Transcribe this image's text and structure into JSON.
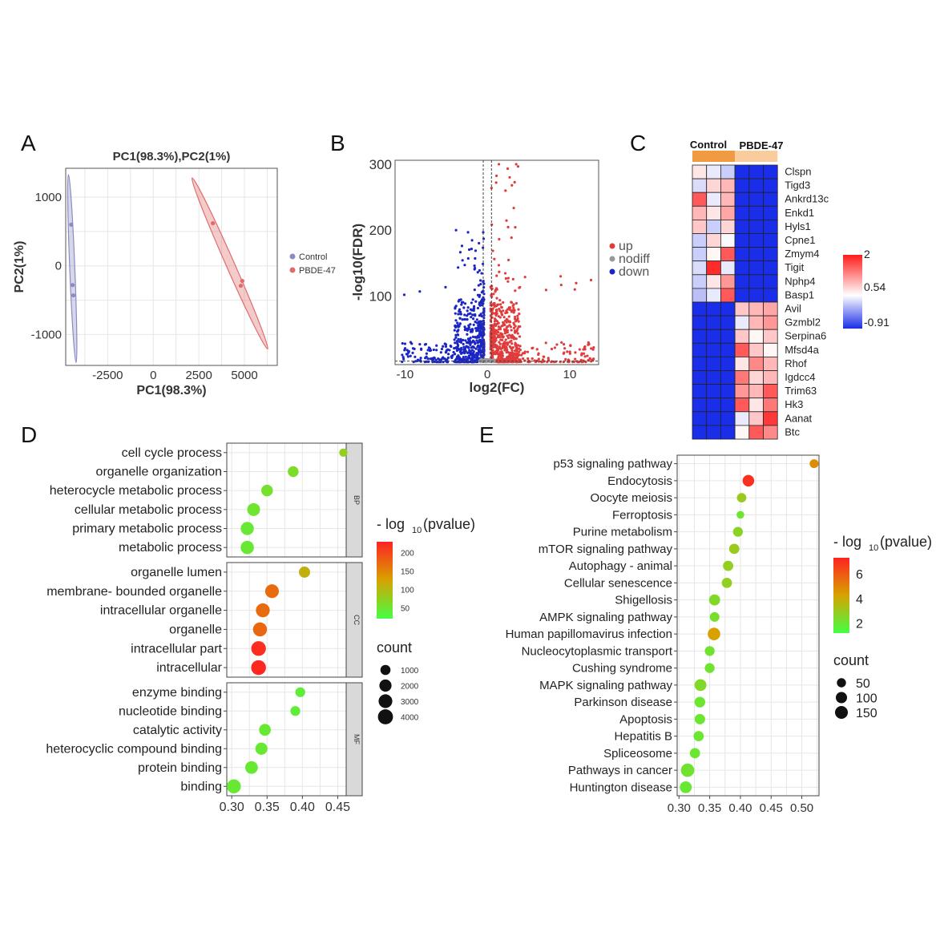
{
  "colors": {
    "control": "#8b8bc2",
    "pbde": "#e06b6b",
    "up": "#e03c3c",
    "down": "#1a25c4",
    "nodiff": "#999999",
    "low": "#44ff44",
    "mid": "#d7a300",
    "high": "#ff2222"
  },
  "chart_data": [
    {
      "panel": "A",
      "type": "scatter",
      "title": "PC1(98.3%),PC2(1%)",
      "xlabel": "PC1(98.3%)",
      "ylabel": "PC2(1%)",
      "xlim": [
        -4800,
        6800
      ],
      "ylim": [
        -1450,
        1420
      ],
      "xticks": [
        "-2500",
        "0",
        "2500",
        "5000"
      ],
      "xtick_values": [
        -2500,
        0,
        2500,
        5000
      ],
      "yticks": [
        "1000",
        "0",
        "-1000"
      ],
      "ytick_values": [
        1000,
        0,
        -1000
      ],
      "legend": [
        "Control",
        "PBDE-47"
      ],
      "series": [
        {
          "name": "Control",
          "points": [
            [
              -4500,
              600
            ],
            [
              -4420,
              -280
            ],
            [
              -4380,
              -430
            ]
          ],
          "ellipse": {
            "center": [
              -4440,
              -40
            ],
            "tip_a": [
              -4650,
              1330
            ],
            "tip_b": [
              -4230,
              -1410
            ],
            "half_width": 140
          }
        },
        {
          "name": "PBDE-47",
          "points": [
            [
              3270,
              620
            ],
            [
              4880,
              -220
            ],
            [
              4800,
              -290
            ]
          ],
          "ellipse": {
            "center": [
              4220,
              160
            ],
            "tip_a": [
              2130,
              1280
            ],
            "tip_b": [
              6270,
              -1210
            ],
            "half_width": 230
          }
        }
      ]
    },
    {
      "panel": "B",
      "type": "scatter",
      "title": "",
      "xlabel": "log2(FC)",
      "ylabel": "-log10(FDR)",
      "xlim": [
        -11.2,
        13.5
      ],
      "ylim": [
        -4,
        306
      ],
      "xticks": [
        "-10",
        "0",
        "10"
      ],
      "xtick_values": [
        -10,
        0,
        10
      ],
      "yticks": [
        "300",
        "200",
        "100"
      ],
      "ytick_values": [
        300,
        200,
        100
      ],
      "legend": [
        "up",
        "nodiff",
        "down"
      ],
      "series": [
        {
          "name": "up",
          "n": 650,
          "x_range": [
            0.1,
            13
          ],
          "max_fdr": 300
        },
        {
          "name": "down",
          "n": 580,
          "x_range": [
            -10.5,
            -0.1
          ],
          "max_fdr": 200
        },
        {
          "name": "nodiff",
          "n": 120,
          "x_range": [
            -1,
            1
          ],
          "max_fdr": 6
        }
      ],
      "thresholds": {
        "x": [
          -0.5,
          0.5
        ],
        "y": 1.3
      }
    },
    {
      "panel": "C",
      "type": "heatmap",
      "groups": [
        "Control",
        "PBDE-47"
      ],
      "genes": [
        "Clspn",
        "Tigd3",
        "Ankrd13c",
        "Enkd1",
        "Hyls1",
        "Cpne1",
        "Zmym4",
        "Tigit",
        "Nphp4",
        "Basp1",
        "Avil",
        "Gzmbl2",
        "Serpina6",
        "Mfsd4a",
        "Rhof",
        "Igdcc4",
        "Trim63",
        "Hk3",
        "Aanat",
        "Btc"
      ],
      "scale_labels": [
        "2",
        "0.54",
        "-0.91"
      ],
      "scale_range": [
        -0.91,
        2
      ],
      "values": [
        [
          0.7,
          0.4,
          0.2,
          -0.91,
          -0.91,
          -0.91
        ],
        [
          0.3,
          0.8,
          1.0,
          -0.91,
          -0.91,
          -0.91
        ],
        [
          1.6,
          0.4,
          1.0,
          -0.91,
          -0.91,
          -0.91
        ],
        [
          1.0,
          0.7,
          1.1,
          -0.91,
          -0.91,
          -0.91
        ],
        [
          0.9,
          0.2,
          0.8,
          -0.91,
          -0.91,
          -0.91
        ],
        [
          0.2,
          0.8,
          0.5,
          -0.91,
          -0.91,
          -0.91
        ],
        [
          0.2,
          0.6,
          1.6,
          -0.91,
          -0.91,
          -0.91
        ],
        [
          0.3,
          1.9,
          0.4,
          -0.91,
          -0.91,
          -0.91
        ],
        [
          0.2,
          0.7,
          1.2,
          -0.91,
          -0.91,
          -0.91
        ],
        [
          0.1,
          0.4,
          1.6,
          -0.91,
          -0.91,
          -0.91
        ],
        [
          -0.91,
          -0.91,
          -0.91,
          0.9,
          1.0,
          1.1
        ],
        [
          -0.91,
          -0.91,
          -0.91,
          0.4,
          1.0,
          1.2
        ],
        [
          -0.91,
          -0.91,
          -0.91,
          0.9,
          0.6,
          0.9
        ],
        [
          -0.91,
          -0.91,
          -0.91,
          1.6,
          0.9,
          0.6
        ],
        [
          -0.91,
          -0.91,
          -0.91,
          0.7,
          1.3,
          1.0
        ],
        [
          -0.91,
          -0.91,
          -0.91,
          1.4,
          0.8,
          1.0
        ],
        [
          -0.91,
          -0.91,
          -0.91,
          1.2,
          1.0,
          1.6
        ],
        [
          -0.91,
          -0.91,
          -0.91,
          1.6,
          0.7,
          1.4
        ],
        [
          -0.91,
          -0.91,
          -0.91,
          0.4,
          0.9,
          1.8
        ],
        [
          -0.91,
          -0.91,
          -0.91,
          0.6,
          1.6,
          1.3
        ]
      ]
    },
    {
      "panel": "D",
      "type": "scatter",
      "xlabel": "",
      "xlim": [
        0.293,
        0.462
      ],
      "xticks": [
        "0.30",
        "0.35",
        "0.40",
        "0.45"
      ],
      "xtick_values": [
        0.3,
        0.35,
        0.4,
        0.45
      ],
      "colorbar_title": "- log10(pvalue)",
      "colorbar_labels": [
        "200",
        "150",
        "100",
        "50"
      ],
      "color_range": [
        20,
        230
      ],
      "size_title": "count",
      "size_labels": [
        "1000",
        "2000",
        "3000",
        "4000"
      ],
      "size_values": [
        1000,
        2000,
        3000,
        4000
      ],
      "facets": [
        {
          "name": "BP",
          "rows": [
            {
              "term": "cell cycle process",
              "x": 0.458,
              "count": 400,
              "p": 75
            },
            {
              "term": "organelle organization",
              "x": 0.387,
              "count": 1300,
              "p": 60
            },
            {
              "term": "heterocycle metabolic process",
              "x": 0.35,
              "count": 1700,
              "p": 55
            },
            {
              "term": "cellular metabolic process",
              "x": 0.331,
              "count": 2400,
              "p": 50
            },
            {
              "term": "primary metabolic process",
              "x": 0.322,
              "count": 2600,
              "p": 45
            },
            {
              "term": "metabolic process",
              "x": 0.322,
              "count": 2700,
              "p": 45
            }
          ]
        },
        {
          "name": "CC",
          "rows": [
            {
              "term": "organelle lumen",
              "x": 0.403,
              "count": 1500,
              "p": 110
            },
            {
              "term": "membrane- bounded organelle",
              "x": 0.357,
              "count": 3000,
              "p": 170
            },
            {
              "term": "intracellular organelle",
              "x": 0.344,
              "count": 3100,
              "p": 170
            },
            {
              "term": "organelle",
              "x": 0.34,
              "count": 3200,
              "p": 175
            },
            {
              "term": "intracellular part",
              "x": 0.338,
              "count": 3700,
              "p": 220
            },
            {
              "term": "intracellular",
              "x": 0.338,
              "count": 3800,
              "p": 225
            }
          ]
        },
        {
          "name": "MF",
          "rows": [
            {
              "term": "enzyme binding",
              "x": 0.397,
              "count": 900,
              "p": 40
            },
            {
              "term": "nucleotide binding",
              "x": 0.39,
              "count": 900,
              "p": 40
            },
            {
              "term": "catalytic activity",
              "x": 0.347,
              "count": 1800,
              "p": 45
            },
            {
              "term": "heterocyclic compound binding",
              "x": 0.342,
              "count": 2000,
              "p": 45
            },
            {
              "term": "protein binding",
              "x": 0.328,
              "count": 2300,
              "p": 45
            },
            {
              "term": "binding",
              "x": 0.303,
              "count": 3200,
              "p": 45
            }
          ]
        }
      ]
    },
    {
      "panel": "E",
      "type": "scatter",
      "xlabel": "",
      "xlim": [
        0.297,
        0.528
      ],
      "xticks": [
        "0.30",
        "0.35",
        "0.40",
        "0.45",
        "0.50"
      ],
      "xtick_values": [
        0.3,
        0.35,
        0.4,
        0.45,
        0.5
      ],
      "colorbar_title": "- log10(pvalue)",
      "colorbar_labels": [
        "6",
        "4",
        "2"
      ],
      "color_range": [
        0.5,
        7.8
      ],
      "size_title": "count",
      "size_labels": [
        "50",
        "100",
        "150"
      ],
      "size_values": [
        50,
        100,
        150
      ],
      "rows": [
        {
          "term": "p53 signaling pathway",
          "x": 0.52,
          "count": 45,
          "p": 4.8
        },
        {
          "term": "Endocytosis",
          "x": 0.413,
          "count": 110,
          "p": 7.4
        },
        {
          "term": "Oocyte meiosis",
          "x": 0.402,
          "count": 55,
          "p": 2.6
        },
        {
          "term": "Ferroptosis",
          "x": 0.4,
          "count": 25,
          "p": 1.5
        },
        {
          "term": "Purine metabolism",
          "x": 0.396,
          "count": 65,
          "p": 2.3
        },
        {
          "term": "mTOR signaling pathway",
          "x": 0.39,
          "count": 75,
          "p": 2.6
        },
        {
          "term": "Autophagy -  animal",
          "x": 0.38,
          "count": 75,
          "p": 2.4
        },
        {
          "term": "Cellular senescence",
          "x": 0.378,
          "count": 75,
          "p": 2.4
        },
        {
          "term": "Shigellosis",
          "x": 0.358,
          "count": 95,
          "p": 2.0
        },
        {
          "term": "AMPK signaling pathway",
          "x": 0.358,
          "count": 60,
          "p": 1.8
        },
        {
          "term": "Human papillomavirus infection",
          "x": 0.357,
          "count": 140,
          "p": 4.2
        },
        {
          "term": "Nucleocytoplasmic transport",
          "x": 0.35,
          "count": 65,
          "p": 1.6
        },
        {
          "term": "Cushing syndrome",
          "x": 0.35,
          "count": 65,
          "p": 1.6
        },
        {
          "term": "MAPK signaling pathway",
          "x": 0.335,
          "count": 120,
          "p": 2.0
        },
        {
          "term": "Parkinson disease",
          "x": 0.334,
          "count": 85,
          "p": 1.5
        },
        {
          "term": "Apoptosis",
          "x": 0.334,
          "count": 80,
          "p": 1.5
        },
        {
          "term": "Hepatitis B",
          "x": 0.332,
          "count": 75,
          "p": 1.5
        },
        {
          "term": "Spliceosome",
          "x": 0.326,
          "count": 75,
          "p": 1.4
        },
        {
          "term": "Pathways in cancer",
          "x": 0.314,
          "count": 170,
          "p": 1.6
        },
        {
          "term": "Huntington disease",
          "x": 0.311,
          "count": 120,
          "p": 1.4
        }
      ]
    }
  ],
  "panel_letters": [
    "A",
    "B",
    "C",
    "D",
    "E"
  ]
}
